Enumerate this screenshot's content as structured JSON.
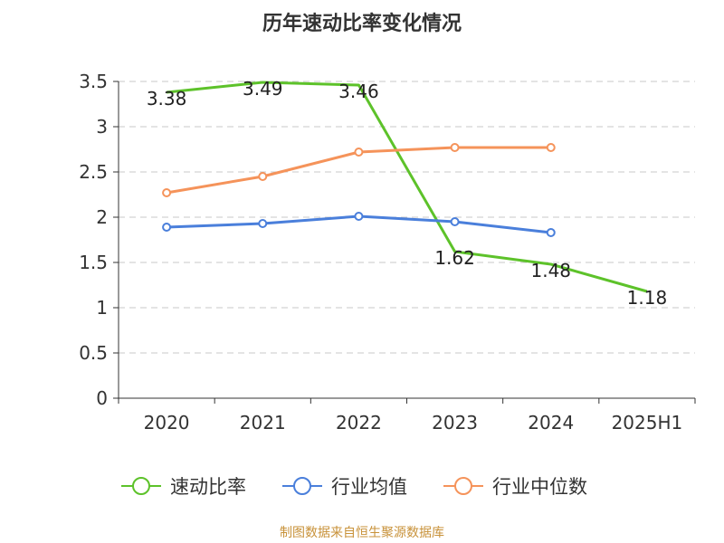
{
  "title": "历年速动比率变化情况",
  "footer": "制图数据来自恒生聚源数据库",
  "chart_data": {
    "type": "line",
    "categories": [
      "2020",
      "2021",
      "2022",
      "2023",
      "2024",
      "2025H1"
    ],
    "ylim": [
      0,
      3.5
    ],
    "yticks": [
      0,
      0.5,
      1,
      1.5,
      2,
      2.5,
      3,
      3.5
    ],
    "ytick_labels": [
      "0",
      "0.5",
      "1",
      "1.5",
      "2",
      "2.5",
      "3",
      "3.5"
    ],
    "grid": true,
    "legend_position": "bottom",
    "series": [
      {
        "name": "速动比率",
        "color": "#5dc22a",
        "markers": false,
        "show_labels": true,
        "values": [
          3.38,
          3.49,
          3.46,
          1.62,
          1.48,
          1.18
        ],
        "labels": [
          "3.38",
          "3.49",
          "3.46",
          "1.62",
          "1.48",
          "1.18"
        ]
      },
      {
        "name": "行业均值",
        "color": "#4a7fdb",
        "markers": true,
        "show_labels": false,
        "values": [
          1.89,
          1.93,
          2.01,
          1.95,
          1.83,
          null
        ]
      },
      {
        "name": "行业中位数",
        "color": "#f5935a",
        "markers": true,
        "show_labels": false,
        "values": [
          2.27,
          2.45,
          2.72,
          2.77,
          2.77,
          null
        ]
      }
    ]
  }
}
